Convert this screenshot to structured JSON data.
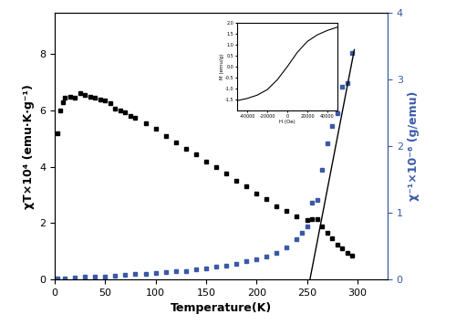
{
  "chart_data": [
    {
      "type": "scatter",
      "xlabel": "Temperature(K)",
      "ylabel": "χT×10⁴ (emu·K·g⁻¹)",
      "y2label": "χ⁻¹×10⁻⁶ (g/emu)",
      "xlim": [
        0,
        330
      ],
      "xticks": [
        0,
        50,
        100,
        150,
        200,
        250,
        300
      ],
      "ylim": [
        0,
        9.46
      ],
      "yticks": [
        0,
        2,
        4,
        6,
        8
      ],
      "y2lim": [
        0,
        4
      ],
      "y2ticks": [
        0,
        1,
        2,
        3,
        4
      ],
      "series": [
        {
          "color": "#000000",
          "marker": "square",
          "x": [
            3,
            5,
            8,
            10,
            15,
            20,
            25,
            30,
            35,
            40,
            45,
            50,
            55,
            60,
            65,
            70,
            75,
            80,
            90,
            100,
            110,
            120,
            130,
            140,
            150,
            160,
            170,
            180,
            190,
            200,
            210,
            220,
            230,
            240,
            250,
            255,
            260,
            265,
            270,
            275,
            280,
            285,
            290,
            295
          ],
          "values": [
            5.2,
            6.0,
            6.3,
            6.45,
            6.5,
            6.45,
            6.6,
            6.55,
            6.5,
            6.45,
            6.4,
            6.35,
            6.25,
            6.05,
            6.0,
            5.95,
            5.8,
            5.75,
            5.55,
            5.35,
            5.1,
            4.85,
            4.65,
            4.45,
            4.2,
            4.0,
            3.75,
            3.5,
            3.3,
            3.05,
            2.85,
            2.6,
            2.45,
            2.25,
            2.1,
            2.15,
            2.15,
            1.9,
            1.65,
            1.45,
            1.25,
            1.1,
            0.95,
            0.85
          ]
        },
        {
          "color": "#3a5aa8",
          "marker": "square",
          "axis": "y2",
          "x": [
            3,
            10,
            20,
            30,
            40,
            50,
            60,
            70,
            80,
            90,
            100,
            110,
            120,
            130,
            140,
            150,
            160,
            170,
            180,
            190,
            200,
            210,
            220,
            230,
            240,
            245,
            250,
            255,
            260,
            265,
            270,
            275,
            280,
            285,
            290,
            295
          ],
          "values": [
            0.01,
            0.02,
            0.03,
            0.04,
            0.045,
            0.05,
            0.06,
            0.07,
            0.08,
            0.09,
            0.1,
            0.11,
            0.12,
            0.13,
            0.15,
            0.17,
            0.19,
            0.21,
            0.24,
            0.27,
            0.3,
            0.35,
            0.4,
            0.48,
            0.6,
            0.7,
            0.8,
            1.15,
            1.2,
            1.65,
            2.05,
            2.3,
            2.5,
            2.9,
            2.95,
            3.4
          ]
        },
        {
          "type": "line",
          "color": "#000000",
          "line_style": "solid",
          "axis": "y2",
          "x": [
            253,
            297
          ],
          "values": [
            0,
            3.45
          ]
        }
      ]
    },
    {
      "type": "line",
      "xlabel": "H (Oe)",
      "ylabel": "M (emu/g)",
      "xlim": [
        -50000,
        50000
      ],
      "xticks": [
        -40000,
        -20000,
        0,
        20000,
        40000
      ],
      "ylim": [
        -2,
        2
      ],
      "yticks": [
        {
          "value": -1.5,
          "label": "-1.5"
        },
        {
          "value": -1,
          "label": "-1.0"
        },
        {
          "value": -0.5,
          "label": "-0.5"
        },
        {
          "value": 0,
          "label": "0.0"
        },
        {
          "value": 0.5,
          "label": "0.5"
        },
        {
          "value": 1,
          "label": "1.0"
        },
        {
          "value": 1.5,
          "label": "1.5"
        },
        {
          "value": 2,
          "label": "2.0"
        }
      ],
      "series": [
        {
          "color": "#000000",
          "line_style": "solid",
          "x": [
            -50000,
            -40000,
            -30000,
            -20000,
            -10000,
            0,
            10000,
            20000,
            30000,
            40000,
            50000
          ],
          "values": [
            -1.55,
            -1.45,
            -1.3,
            -1.05,
            -0.6,
            0,
            0.65,
            1.15,
            1.45,
            1.65,
            1.8
          ]
        }
      ]
    }
  ]
}
